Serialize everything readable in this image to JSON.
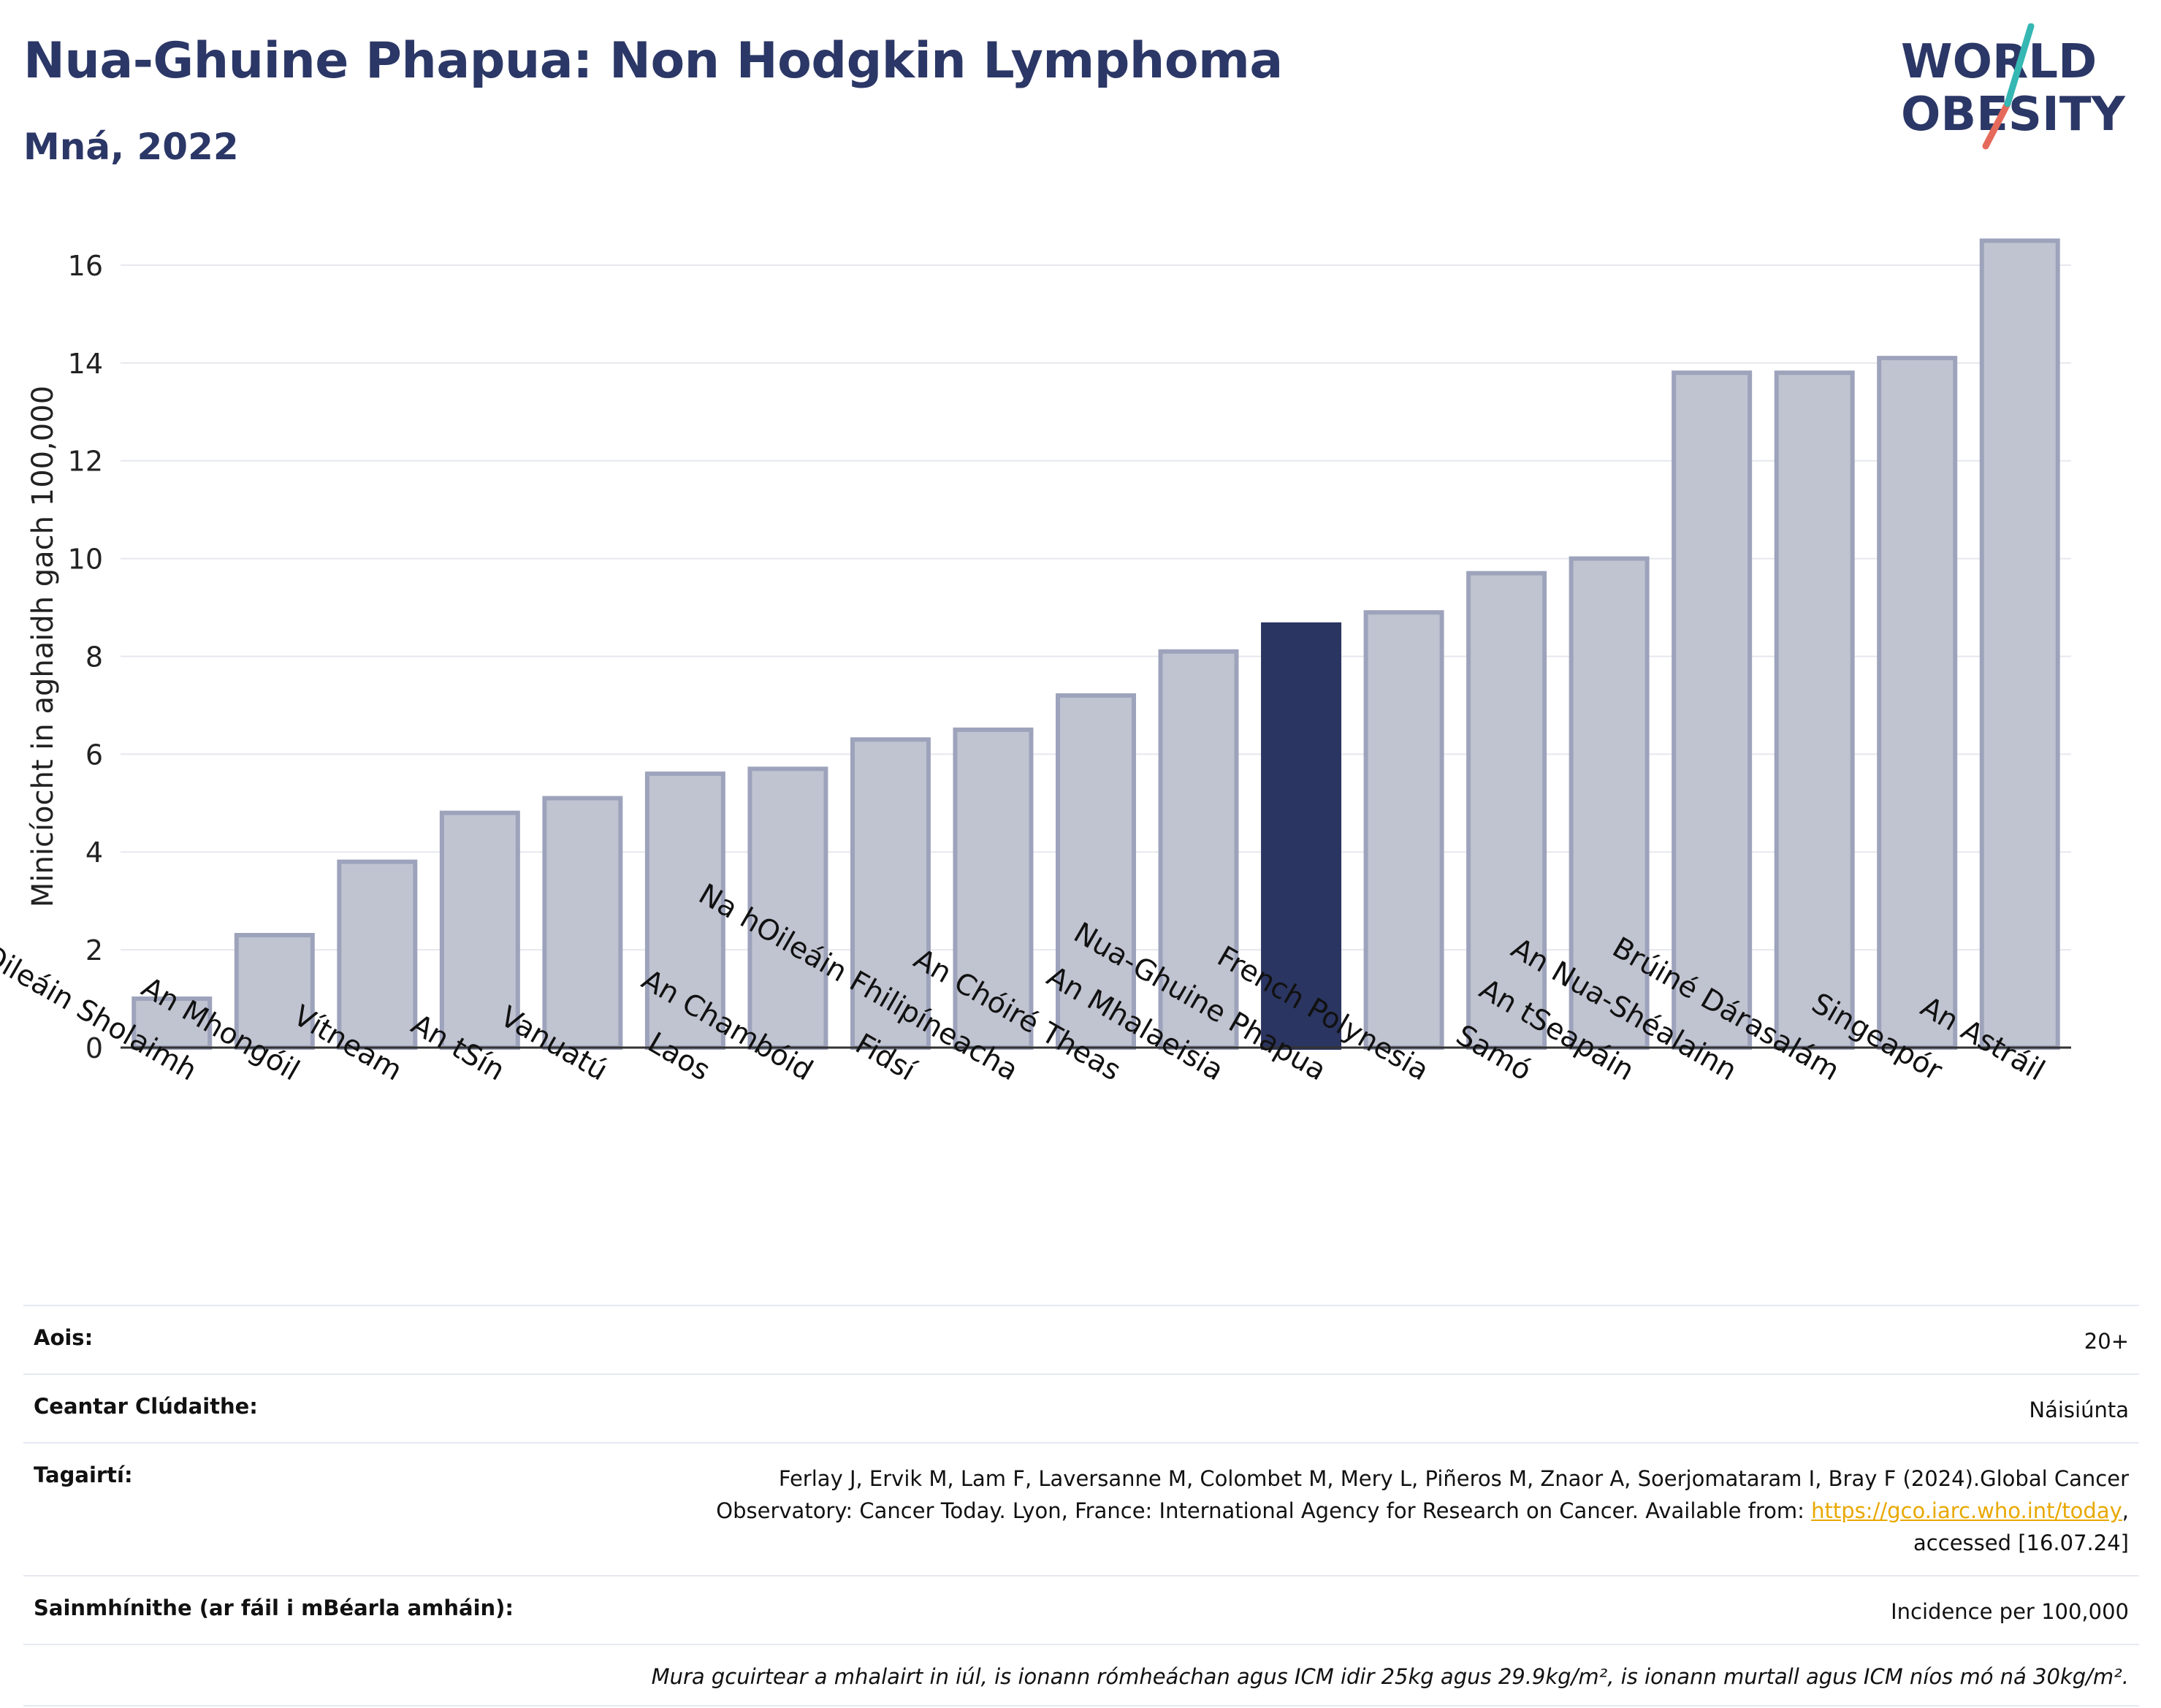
{
  "header": {
    "title": "Nua-Ghuine Phapua: Non Hodgkin Lymphoma",
    "subtitle": "Mná, 2022"
  },
  "logo": {
    "line1": "WORLD",
    "line2": "OBESITY"
  },
  "colors": {
    "highlight": "#2b3561",
    "bar_fill": "#c0c4d1",
    "bar_stroke": "#9ea3bc",
    "grid": "#e6e8ee",
    "title": "#2b3766",
    "logo_teal": "#35b7b3",
    "logo_coral": "#e66a5b"
  },
  "chart_data": {
    "type": "bar",
    "title": "",
    "xlabel": "",
    "ylabel": "Minicíocht in aghaidh gach 100,000",
    "ylim": [
      0,
      17
    ],
    "yticks": [
      0,
      2,
      4,
      6,
      8,
      10,
      12,
      14,
      16
    ],
    "grid": true,
    "highlight_category": "Nua-Ghuine Phapua",
    "categories": [
      "Oileáin Sholaimh",
      "An Mhongóil",
      "Vítneam",
      "An tSín",
      "Vanuatú",
      "Laos",
      "An Chambóid",
      "Fidsí",
      "Na hOileáin Fhilipíneacha",
      "An Chóiré Theas",
      "An Mhalaeisia",
      "Nua-Ghuine Phapua",
      "French Polynesia",
      "Samó",
      "An tSeapáin",
      "An Nua-Shéalainn",
      "Brúiné Dárasalám",
      "Singeapór",
      "An Astráil"
    ],
    "values": [
      1.0,
      2.3,
      3.8,
      4.8,
      5.1,
      5.6,
      5.7,
      6.3,
      6.5,
      7.2,
      8.1,
      8.65,
      8.9,
      9.7,
      10.0,
      13.8,
      13.8,
      14.1,
      16.5
    ]
  },
  "info": {
    "age_label": "Aois:",
    "age_value": "20+",
    "area_label": "Ceantar Clúdaithe:",
    "area_value": "Náisiúnta",
    "refs_label": "Tagairtí:",
    "refs_line1": "Ferlay J, Ervik M, Lam F, Laversanne M, Colombet M, Mery L, Piñeros M, Znaor A, Soerjomataram I, Bray F (2024).Global Cancer",
    "refs_line2_pre": "Observatory: Cancer Today. Lyon, France: International Agency for Research on Cancer. Available from: ",
    "refs_link": "https://gco.iarc.who.int/today",
    "refs_line2_post": ",",
    "refs_line3": "accessed [16.07.24]",
    "defs_label": "Sainmhínithe (ar fáil i mBéarla amháin):",
    "defs_value": "Incidence per 100,000",
    "note": "Mura gcuirtear a mhalairt in iúl, is ionann rómheáchan agus ICM idir 25kg agus 29.9kg/m², is ionann murtall agus ICM níos mó ná 30kg/m²."
  }
}
